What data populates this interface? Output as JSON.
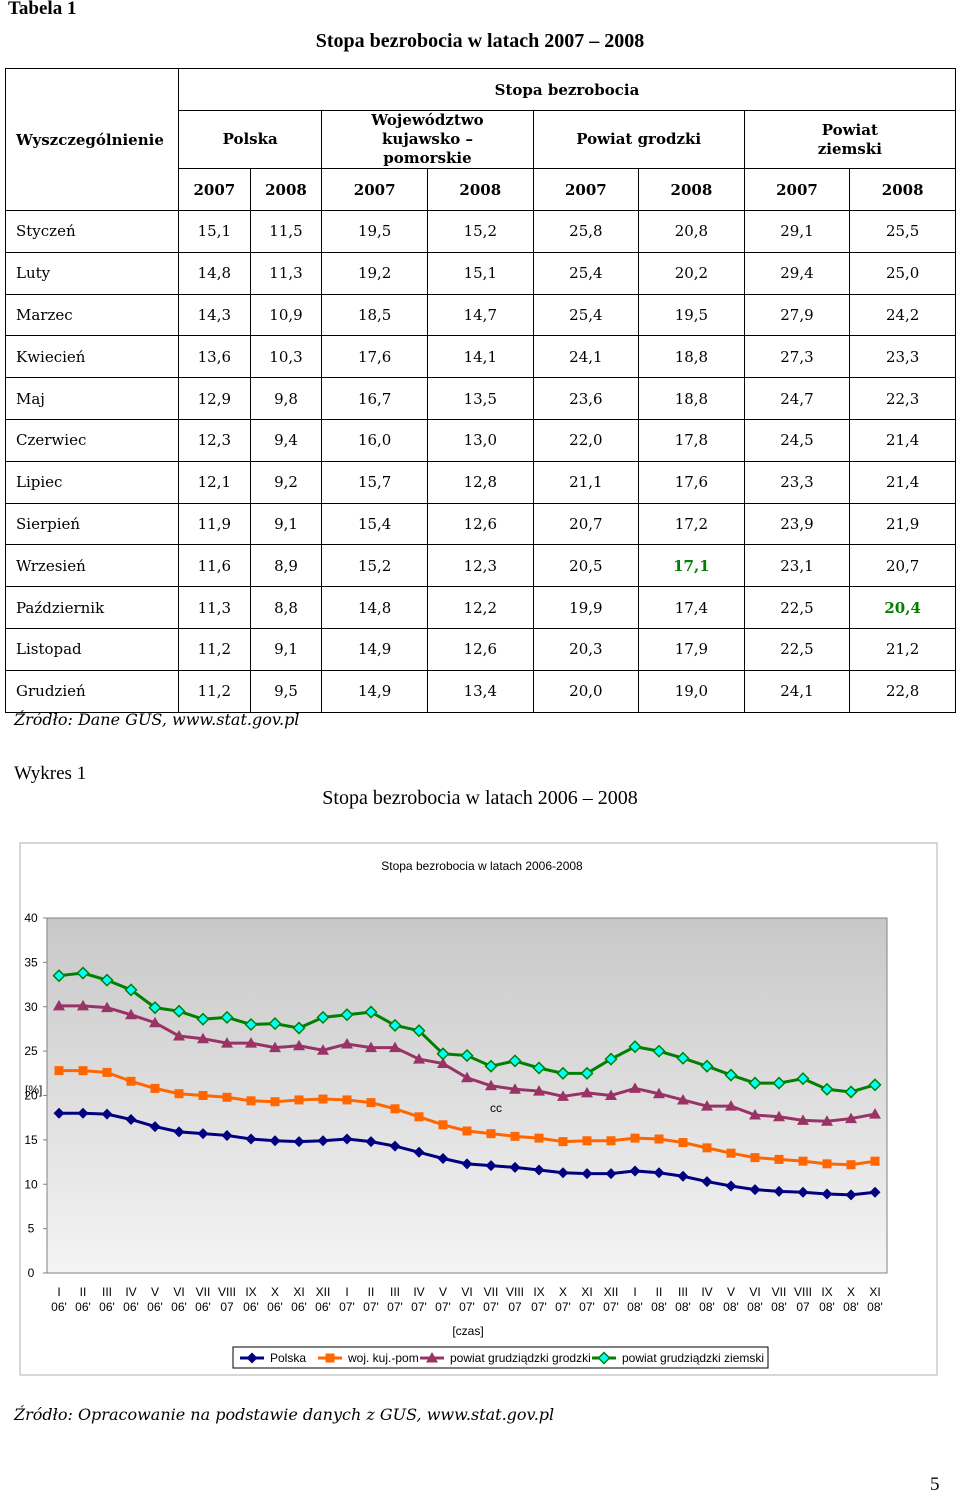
{
  "header": {
    "label": "Tabela 1",
    "title": "Stopa bezrobocia w latach 2007 – 2008"
  },
  "table": {
    "first_col": "Wyszczególnienie",
    "group_header": "Stopa bezrobocia",
    "regions": [
      "Polska",
      "Województwo kujawsko – pomorskie",
      "Powiat grodzki",
      "Powiat ziemski"
    ],
    "years": [
      "2007",
      "2008",
      "2007",
      "2008",
      "2007",
      "2008",
      "2007",
      "2008"
    ],
    "rows": [
      [
        "Styczeń",
        "15,1",
        "11,5",
        "19,5",
        "15,2",
        "25,8",
        "20,8",
        "29,1",
        "25,5"
      ],
      [
        "Luty",
        "14,8",
        "11,3",
        "19,2",
        "15,1",
        "25,4",
        "20,2",
        "29,4",
        "25,0"
      ],
      [
        "Marzec",
        "14,3",
        "10,9",
        "18,5",
        "14,7",
        "25,4",
        "19,5",
        "27,9",
        "24,2"
      ],
      [
        "Kwiecień",
        "13,6",
        "10,3",
        "17,6",
        "14,1",
        "24,1",
        "18,8",
        "27,3",
        "23,3"
      ],
      [
        "Maj",
        "12,9",
        "9,8",
        "16,7",
        "13,5",
        "23,6",
        "18,8",
        "24,7",
        "22,3"
      ],
      [
        "Czerwiec",
        "12,3",
        "9,4",
        "16,0",
        "13,0",
        "22,0",
        "17,8",
        "24,5",
        "21,4"
      ],
      [
        "Lipiec",
        "12,1",
        "9,2",
        "15,7",
        "12,8",
        "21,1",
        "17,6",
        "23,3",
        "21,4"
      ],
      [
        "Sierpień",
        "11,9",
        "9,1",
        "15,4",
        "12,6",
        "20,7",
        "17,2",
        "23,9",
        "21,9"
      ],
      [
        "Wrzesień",
        "11,6",
        "8,9",
        "15,2",
        "12,3",
        "20,5",
        "17,1",
        "23,1",
        "20,7"
      ],
      [
        "Październik",
        "11,3",
        "8,8",
        "14,8",
        "12,2",
        "19,9",
        "17,4",
        "22,5",
        "20,4"
      ],
      [
        "Listopad",
        "11,2",
        "9,1",
        "14,9",
        "12,6",
        "20,3",
        "17,9",
        "22,5",
        "21,2"
      ],
      [
        "Grudzień",
        "11,2",
        "9,5",
        "14,9",
        "13,4",
        "20,0",
        "19,0",
        "24,1",
        "22,8"
      ]
    ],
    "source": "Źródło: Dane GUS, www.stat.gov.pl"
  },
  "figure": {
    "label": "Wykres 1",
    "title": "Stopa bezrobocia w latach 2006 – 2008",
    "source": "Źródło: Opracowanie na podstawie danych z GUS, www.stat.gov.pl"
  },
  "chart_data": {
    "type": "line",
    "title": "Stopa bezrobocia w latach 2006-2008",
    "y_label": "[%]",
    "x_label": "[czas]",
    "annotation": "cc",
    "categories": [
      "I 06'",
      "II 06'",
      "III 06'",
      "IV 06'",
      "V 06'",
      "VI 06'",
      "VII 06'",
      "VIII 07",
      "IX 06'",
      "X 06'",
      "XI 06'",
      "XII 06'",
      "I 07'",
      "II 07'",
      "III 07'",
      "IV 07'",
      "V 07'",
      "VI 07'",
      "VII 07'",
      "VIII 07",
      "IX 07'",
      "X 07'",
      "XI 07'",
      "XII 07'",
      "I 08'",
      "II 08'",
      "III 08'",
      "IV 08'",
      "V 08'",
      "VI 08'",
      "VII 08'",
      "VIII 07",
      "IX 08'",
      "X 08'",
      "XI 08'"
    ],
    "ylim": [
      0,
      40
    ],
    "yticks": [
      0,
      5,
      10,
      15,
      20,
      25,
      30,
      35,
      40
    ],
    "series": [
      {
        "name": "Polska",
        "color": "#000080",
        "marker": "diamond",
        "values": [
          18.0,
          18.0,
          17.9,
          17.3,
          16.5,
          15.9,
          15.7,
          15.5,
          15.1,
          14.9,
          14.8,
          14.9,
          15.1,
          14.8,
          14.3,
          13.6,
          12.9,
          12.3,
          12.1,
          11.9,
          11.6,
          11.3,
          11.2,
          11.2,
          11.5,
          11.3,
          10.9,
          10.3,
          9.8,
          9.4,
          9.2,
          9.1,
          8.9,
          8.8,
          9.1
        ]
      },
      {
        "name": "woj. kuj.-pom",
        "color": "#ff6600",
        "marker": "square",
        "values": [
          22.8,
          22.8,
          22.6,
          21.6,
          20.8,
          20.2,
          20.0,
          19.8,
          19.4,
          19.3,
          19.5,
          19.6,
          19.5,
          19.2,
          18.5,
          17.6,
          16.7,
          16.0,
          15.7,
          15.4,
          15.2,
          14.8,
          14.9,
          14.9,
          15.2,
          15.1,
          14.7,
          14.1,
          13.5,
          13.0,
          12.8,
          12.6,
          12.3,
          12.2,
          12.6
        ]
      },
      {
        "name": "powiat grudziądzki grodzki",
        "color": "#993366",
        "marker": "triangle",
        "values": [
          30.1,
          30.1,
          29.9,
          29.1,
          28.2,
          26.7,
          26.4,
          25.9,
          25.9,
          25.4,
          25.6,
          25.1,
          25.8,
          25.4,
          25.4,
          24.1,
          23.6,
          22.0,
          21.1,
          20.7,
          20.5,
          19.9,
          20.3,
          20.0,
          20.8,
          20.2,
          19.5,
          18.8,
          18.8,
          17.8,
          17.6,
          17.2,
          17.1,
          17.4,
          17.9
        ]
      },
      {
        "name": "powiat grudziądzki ziemski",
        "color": "#008000",
        "marker": "diamond-cyan",
        "values": [
          33.5,
          33.8,
          33.0,
          31.9,
          29.9,
          29.5,
          28.6,
          28.8,
          28.0,
          28.1,
          27.6,
          28.8,
          29.1,
          29.4,
          27.9,
          27.3,
          24.7,
          24.5,
          23.3,
          23.9,
          23.1,
          22.5,
          22.5,
          24.1,
          25.5,
          25.0,
          24.2,
          23.3,
          22.3,
          21.4,
          21.4,
          21.9,
          20.7,
          20.4,
          21.2
        ]
      }
    ]
  },
  "page_number": "5"
}
